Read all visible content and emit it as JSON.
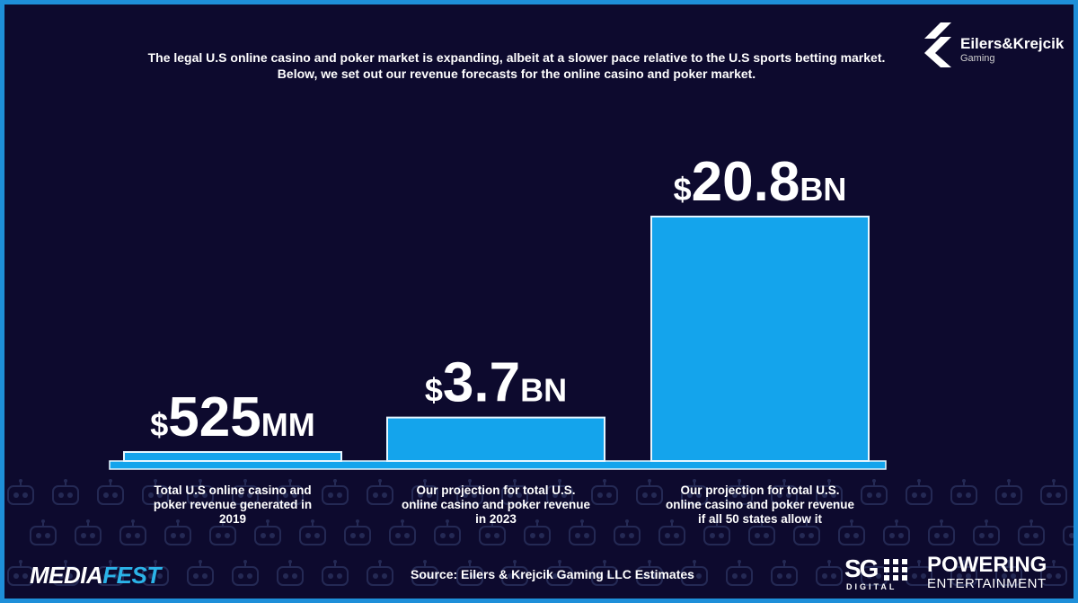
{
  "header": {
    "intro_line_1": "The legal U.S online casino and poker market is expanding, albeit at a slower pace relative to the U.S sports betting market.",
    "intro_line_2": "Below, we set out our revenue forecasts for the online casino and poker market."
  },
  "brand": {
    "ek_name": "Eilers&Krejcik",
    "ek_sub": "Gaming",
    "mediafest_a": "MEDIA",
    "mediafest_b": "FEST",
    "sg_text": "SG",
    "sg_digital": "DIGITAL",
    "powering_1": "POWERING",
    "powering_2": "ENTERTAINMENT"
  },
  "footer": {
    "source": "Source: Eilers & Krejcik Gaming LLC Estimates"
  },
  "colors": {
    "background": "#0d0a2e",
    "frame": "#1e8fd9",
    "bar": "#14a4ec",
    "bar_outline": "#e6f6ff",
    "text": "#ffffff"
  },
  "chart_data": {
    "type": "bar",
    "title": "",
    "xlabel": "",
    "ylabel": "",
    "unit": "USD",
    "values_bn": [
      0.525,
      3.7,
      20.8
    ],
    "value_labels": [
      {
        "prefix": "$",
        "number": "525",
        "suffix": "MM"
      },
      {
        "prefix": "$",
        "number": "3.7",
        "suffix": "BN"
      },
      {
        "prefix": "$",
        "number": "20.8",
        "suffix": "BN"
      }
    ],
    "categories": [
      [
        "Total U.S online casino and",
        "poker revenue generated in",
        "2019"
      ],
      [
        "Our projection for total U.S.",
        "online casino and poker revenue",
        "in 2023"
      ],
      [
        "Our projection for total U.S.",
        "online casino and poker revenue",
        "if all 50 states allow it"
      ]
    ],
    "grid": false,
    "legend": "none"
  }
}
